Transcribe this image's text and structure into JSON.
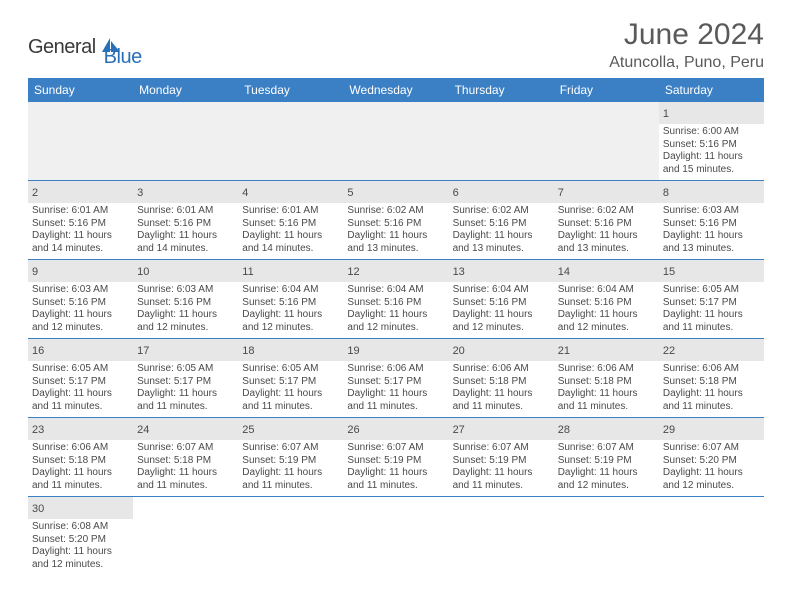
{
  "brand": {
    "part1": "General",
    "part2": "Blue"
  },
  "title": "June 2024",
  "location": "Atuncolla, Puno, Peru",
  "colors": {
    "header_bg": "#3b7fc4",
    "header_text": "#ffffff",
    "daynum_bg": "#e7e7e7",
    "cell_text": "#4a4a4a",
    "border": "#3b7fc4",
    "brand_blue": "#2a70b8"
  },
  "weekdays": [
    "Sunday",
    "Monday",
    "Tuesday",
    "Wednesday",
    "Thursday",
    "Friday",
    "Saturday"
  ],
  "weeks": [
    [
      null,
      null,
      null,
      null,
      null,
      null,
      {
        "n": "1",
        "sr": "6:00 AM",
        "ss": "5:16 PM",
        "dl": "11 hours and 15 minutes."
      }
    ],
    [
      {
        "n": "2",
        "sr": "6:01 AM",
        "ss": "5:16 PM",
        "dl": "11 hours and 14 minutes."
      },
      {
        "n": "3",
        "sr": "6:01 AM",
        "ss": "5:16 PM",
        "dl": "11 hours and 14 minutes."
      },
      {
        "n": "4",
        "sr": "6:01 AM",
        "ss": "5:16 PM",
        "dl": "11 hours and 14 minutes."
      },
      {
        "n": "5",
        "sr": "6:02 AM",
        "ss": "5:16 PM",
        "dl": "11 hours and 13 minutes."
      },
      {
        "n": "6",
        "sr": "6:02 AM",
        "ss": "5:16 PM",
        "dl": "11 hours and 13 minutes."
      },
      {
        "n": "7",
        "sr": "6:02 AM",
        "ss": "5:16 PM",
        "dl": "11 hours and 13 minutes."
      },
      {
        "n": "8",
        "sr": "6:03 AM",
        "ss": "5:16 PM",
        "dl": "11 hours and 13 minutes."
      }
    ],
    [
      {
        "n": "9",
        "sr": "6:03 AM",
        "ss": "5:16 PM",
        "dl": "11 hours and 12 minutes."
      },
      {
        "n": "10",
        "sr": "6:03 AM",
        "ss": "5:16 PM",
        "dl": "11 hours and 12 minutes."
      },
      {
        "n": "11",
        "sr": "6:04 AM",
        "ss": "5:16 PM",
        "dl": "11 hours and 12 minutes."
      },
      {
        "n": "12",
        "sr": "6:04 AM",
        "ss": "5:16 PM",
        "dl": "11 hours and 12 minutes."
      },
      {
        "n": "13",
        "sr": "6:04 AM",
        "ss": "5:16 PM",
        "dl": "11 hours and 12 minutes."
      },
      {
        "n": "14",
        "sr": "6:04 AM",
        "ss": "5:16 PM",
        "dl": "11 hours and 12 minutes."
      },
      {
        "n": "15",
        "sr": "6:05 AM",
        "ss": "5:17 PM",
        "dl": "11 hours and 11 minutes."
      }
    ],
    [
      {
        "n": "16",
        "sr": "6:05 AM",
        "ss": "5:17 PM",
        "dl": "11 hours and 11 minutes."
      },
      {
        "n": "17",
        "sr": "6:05 AM",
        "ss": "5:17 PM",
        "dl": "11 hours and 11 minutes."
      },
      {
        "n": "18",
        "sr": "6:05 AM",
        "ss": "5:17 PM",
        "dl": "11 hours and 11 minutes."
      },
      {
        "n": "19",
        "sr": "6:06 AM",
        "ss": "5:17 PM",
        "dl": "11 hours and 11 minutes."
      },
      {
        "n": "20",
        "sr": "6:06 AM",
        "ss": "5:18 PM",
        "dl": "11 hours and 11 minutes."
      },
      {
        "n": "21",
        "sr": "6:06 AM",
        "ss": "5:18 PM",
        "dl": "11 hours and 11 minutes."
      },
      {
        "n": "22",
        "sr": "6:06 AM",
        "ss": "5:18 PM",
        "dl": "11 hours and 11 minutes."
      }
    ],
    [
      {
        "n": "23",
        "sr": "6:06 AM",
        "ss": "5:18 PM",
        "dl": "11 hours and 11 minutes."
      },
      {
        "n": "24",
        "sr": "6:07 AM",
        "ss": "5:18 PM",
        "dl": "11 hours and 11 minutes."
      },
      {
        "n": "25",
        "sr": "6:07 AM",
        "ss": "5:19 PM",
        "dl": "11 hours and 11 minutes."
      },
      {
        "n": "26",
        "sr": "6:07 AM",
        "ss": "5:19 PM",
        "dl": "11 hours and 11 minutes."
      },
      {
        "n": "27",
        "sr": "6:07 AM",
        "ss": "5:19 PM",
        "dl": "11 hours and 11 minutes."
      },
      {
        "n": "28",
        "sr": "6:07 AM",
        "ss": "5:19 PM",
        "dl": "11 hours and 12 minutes."
      },
      {
        "n": "29",
        "sr": "6:07 AM",
        "ss": "5:20 PM",
        "dl": "11 hours and 12 minutes."
      }
    ],
    [
      {
        "n": "30",
        "sr": "6:08 AM",
        "ss": "5:20 PM",
        "dl": "11 hours and 12 minutes."
      },
      null,
      null,
      null,
      null,
      null,
      null
    ]
  ],
  "labels": {
    "sunrise": "Sunrise:",
    "sunset": "Sunset:",
    "daylight": "Daylight:"
  }
}
